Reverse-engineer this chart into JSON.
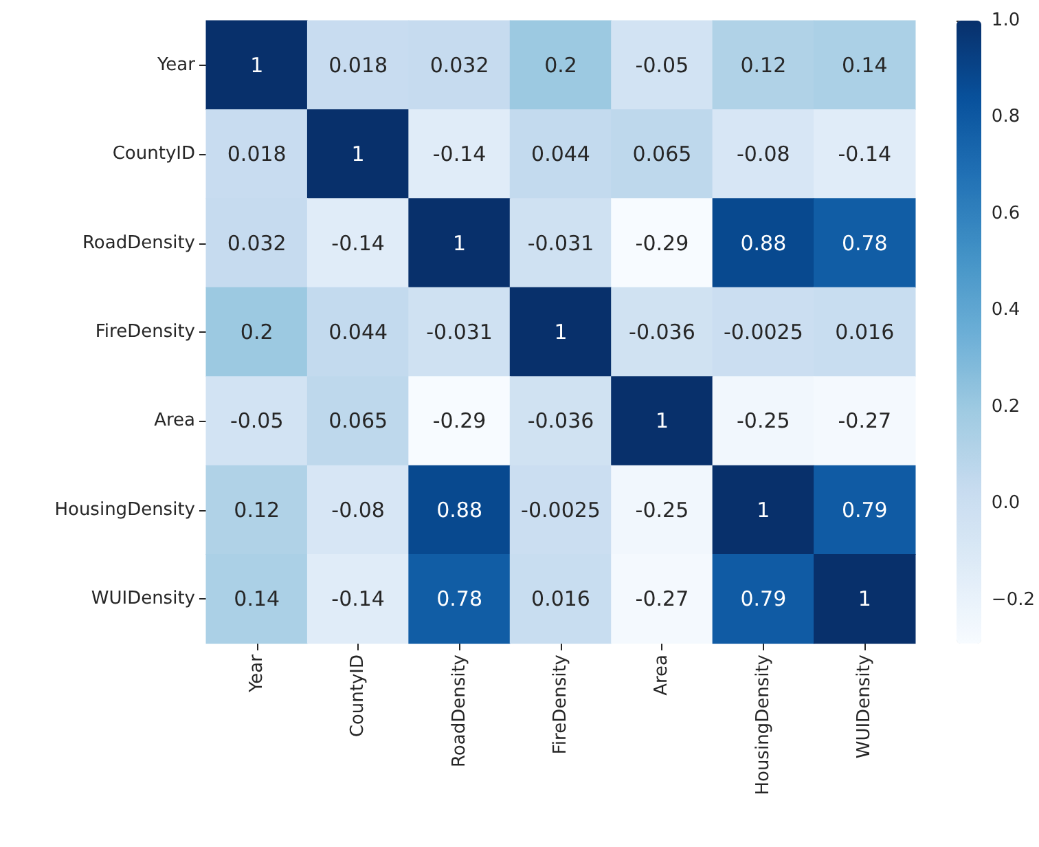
{
  "chart_data": {
    "type": "heatmap",
    "categories": [
      "Year",
      "CountyID",
      "RoadDensity",
      "FireDensity",
      "Area",
      "HousingDensity",
      "WUIDensity"
    ],
    "y_categories": [
      "Year",
      "CountyID",
      "RoadDensity",
      "FireDensity",
      "Area",
      "HousingDensity",
      "WUIDensity"
    ],
    "cells": [
      [
        1,
        0.018,
        0.032,
        0.2,
        -0.05,
        0.12,
        0.14
      ],
      [
        0.018,
        1,
        -0.14,
        0.044,
        0.065,
        -0.08,
        -0.14
      ],
      [
        0.032,
        -0.14,
        1,
        -0.031,
        -0.29,
        0.88,
        0.78
      ],
      [
        0.2,
        0.044,
        -0.031,
        1,
        -0.036,
        -0.0025,
        0.016
      ],
      [
        -0.05,
        0.065,
        -0.29,
        -0.036,
        1,
        -0.25,
        -0.27
      ],
      [
        0.12,
        -0.08,
        0.88,
        -0.0025,
        -0.25,
        1,
        0.79
      ],
      [
        0.14,
        -0.14,
        0.78,
        0.016,
        -0.27,
        0.79,
        1
      ]
    ],
    "data_labels": true,
    "clim": [
      -0.29,
      1
    ],
    "cticks": [
      {
        "value": -0.2,
        "label": "−0.2"
      },
      {
        "value": 0,
        "label": "0.0"
      },
      {
        "value": 0.2,
        "label": "0.2"
      },
      {
        "value": 0.4,
        "label": "0.4"
      },
      {
        "value": 0.6,
        "label": "0.6"
      },
      {
        "value": 0.8,
        "label": "0.8"
      },
      {
        "value": 1,
        "label": "1.0"
      }
    ]
  }
}
